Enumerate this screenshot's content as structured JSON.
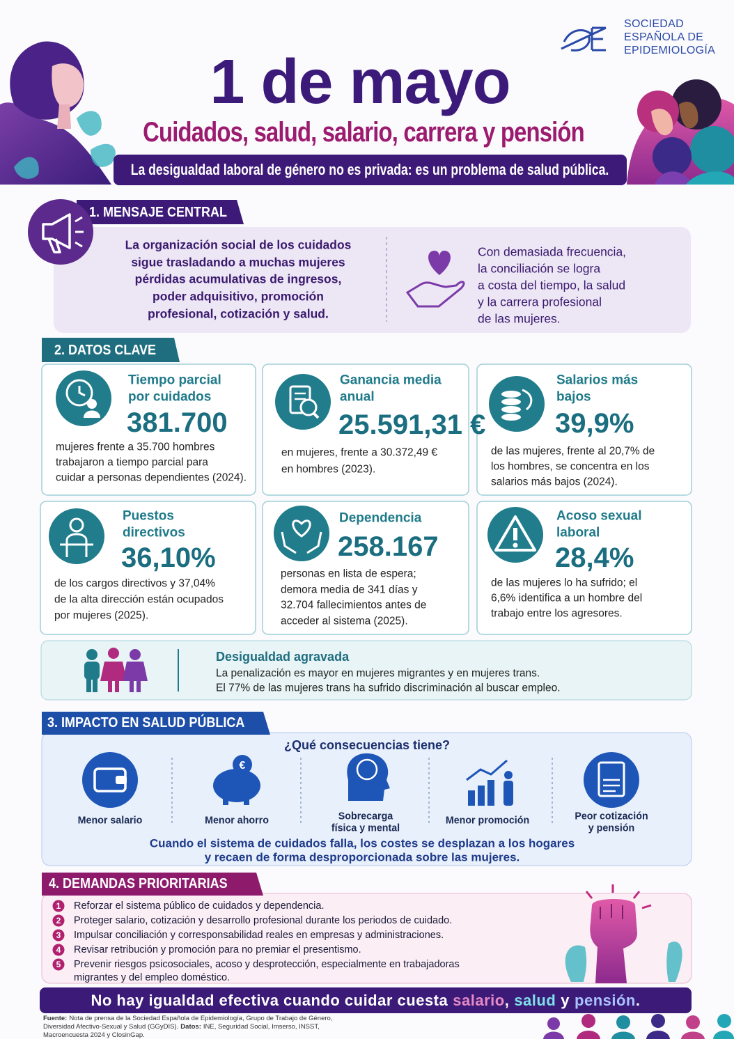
{
  "header": {
    "logo": [
      "SOCIEDAD",
      "ESPAÑOLA DE",
      "EPIDEMIOLOGÍA"
    ],
    "title": "1 de mayo",
    "subtitle": "Cuidados, salud, salario, carrera y pensión",
    "banner": "La desigualdad laboral de género no es privada: es un problema de salud pública."
  },
  "central_message": {
    "heading": "1. MENSAJE CENTRAL",
    "main": [
      "La organización social de los cuidados",
      "sigue trasladando a muchas mujeres",
      "pérdidas acumulativas de ingresos,",
      "poder adquisitivo, promoción",
      "profesional, cotización y salud."
    ],
    "side": [
      "Con demasiada frecuencia,",
      "la conciliación se logra",
      "a costa del tiempo, la salud",
      "y la carrera profesional",
      "de las mujeres."
    ]
  },
  "key_data": {
    "heading": "2.  DATOS CLAVE",
    "cards": [
      {
        "title": [
          "Tiempo parcial",
          "por cuidados"
        ],
        "value": "381.700",
        "description": [
          "mujeres frente a 35.700 hombres",
          "trabajaron a tiempo parcial para",
          "cuidar a personas dependientes (2024)."
        ]
      },
      {
        "title": [
          "Ganancia media",
          "anual"
        ],
        "value": "25.591,31 €",
        "description": [
          "en mujeres, frente a 30.372,49 €",
          "en hombres (2023)."
        ]
      },
      {
        "title": [
          "Salarios más",
          "bajos"
        ],
        "value": "39,9%",
        "description": [
          "de las mujeres, frente al 20,7% de",
          "los hombres, se concentra en los",
          "salarios más bajos (2024)."
        ]
      },
      {
        "title": [
          "Puestos",
          "directivos"
        ],
        "value": "36,10%",
        "description": [
          "de los cargos directivos y 37,04%",
          "de la alta dirección están ocupados",
          "por mujeres (2025)."
        ]
      },
      {
        "title": [
          "Dependencia"
        ],
        "value": "258.167",
        "description": [
          "personas en lista de espera;",
          "demora media de 341 días y",
          "32.704 fallecimientos antes de",
          "acceder al sistema (2025)."
        ]
      },
      {
        "title": [
          "Acoso sexual",
          "laboral"
        ],
        "value": "28,4%",
        "description": [
          "de las mujeres lo ha sufrido; el",
          "6,6% identifica a un hombre del",
          "trabajo entre los agresores."
        ]
      }
    ],
    "highlight": {
      "title": "Desigualdad agravada",
      "lines": [
        "La penalización es mayor en mujeres migrantes y en mujeres trans.",
        "El 77% de las mujeres trans ha sufrido discriminación al buscar empleo."
      ]
    }
  },
  "impact": {
    "heading": "3. IMPACTO EN SALUD PÚBLICA",
    "question": "¿Qué consecuencias tiene?",
    "items": [
      [
        "Menor salario"
      ],
      [
        "Menor ahorro"
      ],
      [
        "Sobrecarga",
        "física y mental"
      ],
      [
        "Menor promoción"
      ],
      [
        "Peor cotización",
        "y pensión"
      ]
    ],
    "conclusion": [
      "Cuando el sistema de cuidados falla, los costes se desplazan a los hogares",
      "y recaen de forma desproporcionada sobre las mujeres."
    ]
  },
  "demands": {
    "heading": "4. DEMANDAS PRIORITARIAS",
    "items": [
      {
        "number": "1",
        "lines": [
          "Reforzar el sistema público de cuidados y dependencia."
        ]
      },
      {
        "number": "2",
        "lines": [
          "Proteger salario, cotización y desarrollo profesional durante los periodos de cuidado."
        ]
      },
      {
        "number": "3",
        "lines": [
          "Impulsar conciliación y corresponsabilidad reales en empresas y administraciones."
        ]
      },
      {
        "number": "4",
        "lines": [
          "Revisar retribución y promoción para no premiar el presentismo."
        ]
      },
      {
        "number": "5",
        "lines": [
          "Prevenir riesgos psicosociales, acoso y desprotección, especialmente en trabajadoras",
          "migrantes y del empleo doméstico."
        ]
      }
    ]
  },
  "closing": {
    "parts": [
      "No hay igualdad efectiva cuando cuidar cuesta",
      "salario",
      ",",
      "salud",
      "y",
      "pensión",
      "."
    ]
  },
  "source": {
    "fuente_label": "Fuente:",
    "line1": "Nota de prensa de la Sociedad Española de Epidemiología, Grupo de Trabajo de Género,",
    "line2": "Diversidad Afectivo-Sexual y Salud (GGyDIS).",
    "datos_label": "Datos:",
    "line2b": "INE, Seguridad Social, Imserso, INSST,",
    "line3": "Macroencuesta 2024 y ClosinGap."
  }
}
